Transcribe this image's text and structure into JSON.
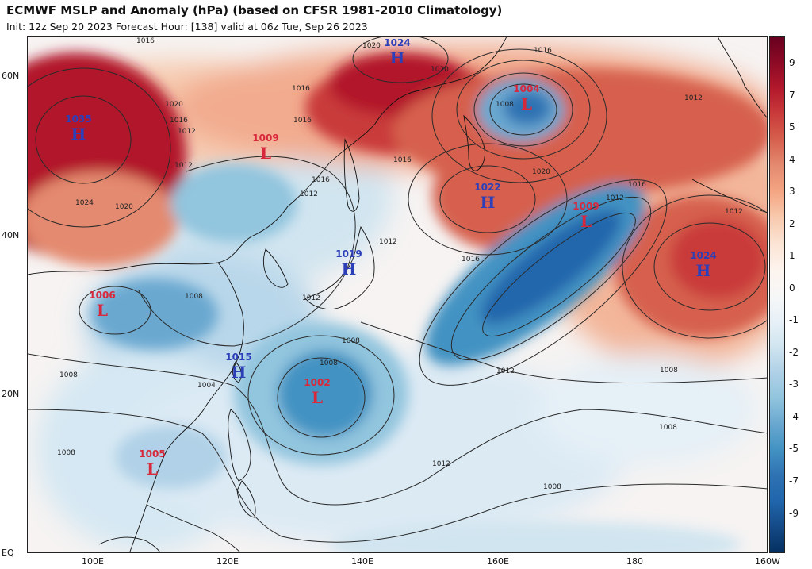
{
  "header": {
    "title": "ECMWF MSLP and Anomaly (hPa) (based on CFSR 1981-2010 Climatology)",
    "subtitle": "Init: 12z Sep 20 2023   Forecast Hour: [138]   valid at 06z Tue, Sep 26 2023"
  },
  "axes": {
    "lat_labels": [
      "60N",
      "40N",
      "20N",
      "EQ"
    ],
    "lon_labels": [
      "100E",
      "120E",
      "140E",
      "160E",
      "180",
      "160W"
    ]
  },
  "colorbar": {
    "labels": [
      "9",
      "7",
      "5",
      "4",
      "3",
      "2",
      "1",
      "0",
      "-1",
      "-2",
      "-3",
      "-4",
      "-5",
      "-7",
      "-9"
    ],
    "colors": [
      "#67001f",
      "#8c0a25",
      "#b2182b",
      "#c93b3b",
      "#d6604d",
      "#e48a70",
      "#f4a582",
      "#f8c9ad",
      "#fbe3d3",
      "#fdf3ed",
      "#f7f7f7",
      "#e8f1f7",
      "#d1e5f0",
      "#b0d1e7",
      "#92c5de",
      "#6aa8d0",
      "#4393c3",
      "#2f72b3",
      "#2166ac",
      "#144a87",
      "#053061"
    ]
  },
  "pressure_centers": [
    {
      "type": "H",
      "value": "1024",
      "color": "#2d3fb8"
    },
    {
      "type": "H",
      "value": "1035",
      "color": "#2d3fb8"
    },
    {
      "type": "L",
      "value": "1004",
      "color": "#d8283c"
    },
    {
      "type": "L",
      "value": "1009",
      "color": "#d8283c"
    },
    {
      "type": "H",
      "value": "1022",
      "color": "#2d3fb8"
    },
    {
      "type": "L",
      "value": "1009",
      "color": "#d8283c"
    },
    {
      "type": "H",
      "value": "1024",
      "color": "#2d3fb8"
    },
    {
      "type": "H",
      "value": "1019",
      "color": "#2d3fb8"
    },
    {
      "type": "L",
      "value": "1006",
      "color": "#d8283c"
    },
    {
      "type": "H",
      "value": "1015",
      "color": "#2d3fb8"
    },
    {
      "type": "L",
      "value": "1002",
      "color": "#d8283c"
    },
    {
      "type": "L",
      "value": "1005",
      "color": "#d8283c"
    }
  ],
  "isobar_labels": [
    "1016",
    "1020",
    "1016",
    "1008",
    "1016",
    "1020",
    "1012",
    "1020",
    "1016",
    "1012",
    "1024",
    "1020",
    "1016",
    "1012",
    "1016",
    "1012",
    "1016",
    "1020",
    "1012",
    "1016",
    "1012",
    "1012",
    "1012",
    "1016",
    "1008",
    "1008",
    "1008",
    "1004",
    "1008",
    "1012",
    "1008",
    "1008",
    "1008",
    "1012",
    "1008"
  ]
}
